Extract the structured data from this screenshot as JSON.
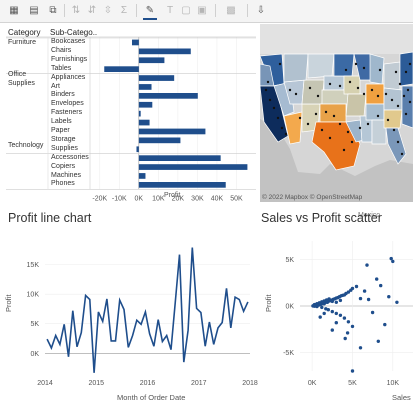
{
  "toolbar": {
    "icons": [
      "table-grid-icon",
      "table-plus-icon",
      "duplicate-icon",
      "sort-icon",
      "sort-desc-icon",
      "sum-icon",
      "pen-icon",
      "text-icon",
      "frame-icon",
      "layout-icon",
      "image-icon",
      "present-icon"
    ]
  },
  "bar_chart": {
    "headers": {
      "category": "Category",
      "sub_category": "Sub-Catego.."
    },
    "categories": [
      {
        "name": "Furniture",
        "subs": [
          "Bookcases",
          "Chairs",
          "Furnishings",
          "Tables"
        ]
      },
      {
        "name": "Office Supplies",
        "line1": "Office",
        "line2": "Supplies",
        "subs": [
          "Appliances",
          "Art",
          "Binders",
          "Envelopes",
          "Fasteners",
          "Labels",
          "Paper",
          "Storage",
          "Supplies"
        ]
      },
      {
        "name": "Technology",
        "subs": [
          "Accessories",
          "Copiers",
          "Machines",
          "Phones"
        ]
      }
    ],
    "xlabel": "Profit"
  },
  "map": {
    "attribution": "© 2022 Mapbox  © OpenStreetMap",
    "mexico_label": "Mexico"
  },
  "line_chart": {
    "title": "Profit line chart",
    "xlabel": "Month of Order Date",
    "ylabel": "Profit"
  },
  "scatter": {
    "title": "Sales vs Profit scatter",
    "xlabel": "Sales",
    "ylabel": "Profit"
  },
  "chart_data": [
    {
      "type": "bar",
      "orientation": "horizontal",
      "categories": [
        "Bookcases",
        "Chairs",
        "Furnishings",
        "Tables",
        "Appliances",
        "Art",
        "Binders",
        "Envelopes",
        "Fasteners",
        "Labels",
        "Paper",
        "Storage",
        "Supplies",
        "Accessories",
        "Copiers",
        "Machines",
        "Phones"
      ],
      "values": [
        -3500,
        26600,
        13100,
        -17700,
        18100,
        6500,
        30200,
        6900,
        950,
        5500,
        34100,
        21300,
        -1200,
        41900,
        55600,
        3400,
        44500
      ],
      "xlabel": "Profit",
      "xticks": [
        "-20K",
        "-10K",
        "0K",
        "10K",
        "20K",
        "30K",
        "40K",
        "50K"
      ],
      "xlim": [
        -25000,
        60000
      ],
      "color": "#1f4e8c"
    },
    {
      "type": "line",
      "title": "Profit line chart",
      "xlabel": "Month of Order Date",
      "ylabel": "Profit",
      "x_start": "2014-01",
      "x_end": "2017-12",
      "xticks": [
        "2014",
        "2015",
        "2016",
        "2017",
        "2018"
      ],
      "yticks": [
        "0K",
        "5K",
        "10K",
        "15K"
      ],
      "ylim": [
        -3000,
        19000
      ],
      "values": [
        2400,
        900,
        3000,
        1500,
        4900,
        -600,
        7200,
        1100,
        3500,
        9800,
        9100,
        -3300,
        7000,
        5400,
        9200,
        2100,
        2100,
        9000,
        7400,
        1000,
        3000,
        5600,
        4900,
        7000,
        3300,
        1200,
        5700,
        2000,
        3000,
        600,
        8700,
        16700,
        -1500,
        3900,
        17900,
        7600,
        6900,
        1200,
        5300,
        1500,
        4300,
        5200,
        11000,
        4300,
        9500,
        9100,
        7100,
        8700
      ],
      "color": "#1f4e8c"
    },
    {
      "type": "scatter",
      "title": "Sales vs Profit scatter",
      "xlabel": "Sales",
      "ylabel": "Profit",
      "xticks": [
        "0K",
        "5K",
        "10K"
      ],
      "yticks": [
        "-5K",
        "0K",
        "5K"
      ],
      "xlim": [
        -1500,
        12500
      ],
      "ylim": [
        -7000,
        7000
      ],
      "points": [
        [
          100,
          10
        ],
        [
          200,
          40
        ],
        [
          300,
          -20
        ],
        [
          400,
          80
        ],
        [
          500,
          60
        ],
        [
          600,
          -50
        ],
        [
          700,
          120
        ],
        [
          800,
          100
        ],
        [
          900,
          150
        ],
        [
          1000,
          200
        ],
        [
          1100,
          180
        ],
        [
          1200,
          -150
        ],
        [
          1300,
          260
        ],
        [
          1400,
          300
        ],
        [
          1500,
          250
        ],
        [
          1600,
          380
        ],
        [
          1700,
          -300
        ],
        [
          1800,
          420
        ],
        [
          1900,
          400
        ],
        [
          2000,
          500
        ],
        [
          2200,
          560
        ],
        [
          2400,
          620
        ],
        [
          2600,
          700
        ],
        [
          2800,
          780
        ],
        [
          3000,
          850
        ],
        [
          3200,
          900
        ],
        [
          3400,
          1000
        ],
        [
          3600,
          1100
        ],
        [
          3800,
          1150
        ],
        [
          4000,
          1200
        ],
        [
          4200,
          1350
        ],
        [
          4500,
          1500
        ],
        [
          4800,
          1700
        ],
        [
          5000,
          1900
        ],
        [
          5500,
          2100
        ],
        [
          300,
          150
        ],
        [
          600,
          250
        ],
        [
          900,
          350
        ],
        [
          1200,
          450
        ],
        [
          1500,
          550
        ],
        [
          1800,
          650
        ],
        [
          2100,
          750
        ],
        [
          2500,
          500
        ],
        [
          3000,
          400
        ],
        [
          3500,
          600
        ],
        [
          2000,
          -400
        ],
        [
          2500,
          -600
        ],
        [
          3000,
          -800
        ],
        [
          3500,
          -1000
        ],
        [
          4000,
          -1300
        ],
        [
          4500,
          -1700
        ],
        [
          5000,
          -2200
        ],
        [
          3000,
          -1800
        ],
        [
          2500,
          -2600
        ],
        [
          1000,
          -1200
        ],
        [
          1500,
          -800
        ],
        [
          4400,
          -2900
        ],
        [
          4100,
          -3500
        ],
        [
          6000,
          800
        ],
        [
          6500,
          1600
        ],
        [
          7000,
          700
        ],
        [
          7500,
          -700
        ],
        [
          8000,
          2900
        ],
        [
          8500,
          2200
        ],
        [
          9500,
          1000
        ],
        [
          10500,
          400
        ],
        [
          9000,
          -2000
        ],
        [
          8200,
          -3800
        ],
        [
          6000,
          -4500
        ],
        [
          9800,
          5100
        ],
        [
          10000,
          4800
        ],
        [
          6800,
          4400
        ],
        [
          5000,
          -7000
        ]
      ],
      "color": "#1f4e8c"
    }
  ]
}
